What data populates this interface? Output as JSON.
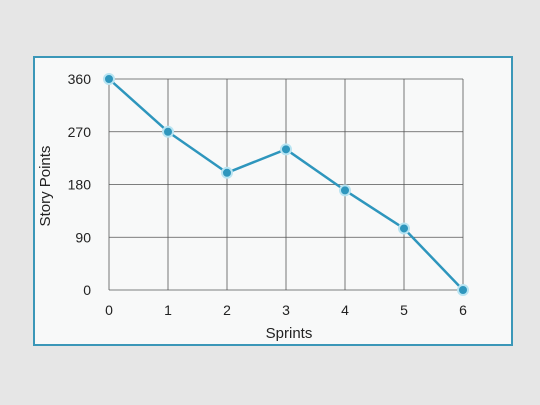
{
  "chart_data": {
    "type": "line",
    "title": "",
    "xlabel": "Sprints",
    "ylabel": "Story Points",
    "x": [
      0,
      1,
      2,
      3,
      4,
      5,
      6
    ],
    "xticks": [
      "0",
      "1",
      "2",
      "3",
      "4",
      "5",
      "6"
    ],
    "yticks": [
      "0",
      "90",
      "180",
      "270",
      "360"
    ],
    "ytick_values": [
      0,
      90,
      180,
      270,
      360
    ],
    "xlim": [
      0,
      6
    ],
    "ylim": [
      0,
      360
    ],
    "grid": true,
    "series": [
      {
        "values": [
          360,
          270,
          200,
          240,
          170,
          105,
          0
        ],
        "color": "#2e96bd"
      }
    ]
  },
  "colors": {
    "background": "#e6e6e6",
    "panel_background": "#f8f9f9",
    "panel_border": "#3b97b8",
    "grid": "#555555",
    "line": "#2e96bd"
  }
}
